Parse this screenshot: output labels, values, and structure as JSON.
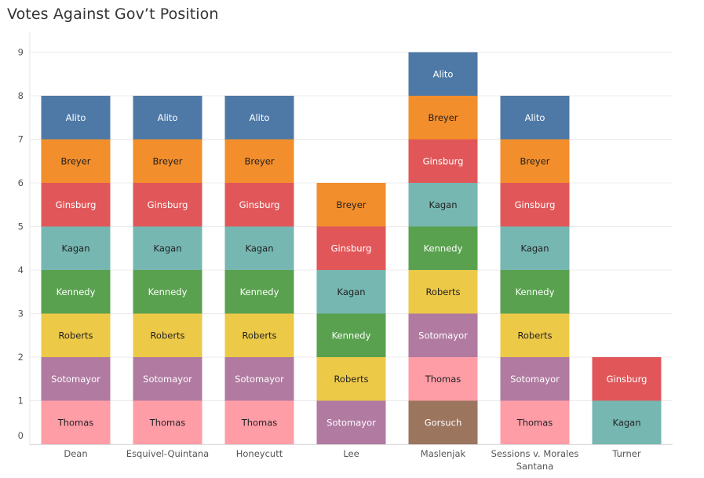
{
  "chart_data": {
    "type": "bar",
    "stacked": true,
    "title": "Votes Against Gov’t Position",
    "xlabel": "",
    "ylabel": "",
    "ylim": [
      0,
      9
    ],
    "yticks": [
      0,
      1,
      2,
      3,
      4,
      5,
      6,
      7,
      8,
      9
    ],
    "categories": [
      {
        "name": "Dean",
        "lines": [
          "Dean"
        ]
      },
      {
        "name": "Esquivel-Quintana",
        "lines": [
          "Esquivel-Quintana"
        ]
      },
      {
        "name": "Honeycutt",
        "lines": [
          "Honeycutt"
        ]
      },
      {
        "name": "Lee",
        "lines": [
          "Lee"
        ]
      },
      {
        "name": "Maslenjak",
        "lines": [
          "Maslenjak"
        ]
      },
      {
        "name": "Sessions v. Morales Santana",
        "lines": [
          "Sessions v. Morales",
          "Santana"
        ]
      },
      {
        "name": "Turner",
        "lines": [
          "Turner"
        ]
      }
    ],
    "justices": {
      "Alito": {
        "color": "#4e79a7",
        "text": "#ffffff"
      },
      "Breyer": {
        "color": "#f28e2b",
        "text": "#222222"
      },
      "Ginsburg": {
        "color": "#e15759",
        "text": "#ffffff"
      },
      "Kagan": {
        "color": "#76b7b2",
        "text": "#222222"
      },
      "Kennedy": {
        "color": "#59a14f",
        "text": "#ffffff"
      },
      "Roberts": {
        "color": "#edc948",
        "text": "#222222"
      },
      "Sotomayor": {
        "color": "#b07aa1",
        "text": "#ffffff"
      },
      "Thomas": {
        "color": "#ff9da7",
        "text": "#222222"
      },
      "Gorsuch": {
        "color": "#9c755f",
        "text": "#ffffff"
      }
    },
    "stacks": [
      [
        "Thomas",
        "Sotomayor",
        "Roberts",
        "Kennedy",
        "Kagan",
        "Ginsburg",
        "Breyer",
        "Alito"
      ],
      [
        "Thomas",
        "Sotomayor",
        "Roberts",
        "Kennedy",
        "Kagan",
        "Ginsburg",
        "Breyer",
        "Alito"
      ],
      [
        "Thomas",
        "Sotomayor",
        "Roberts",
        "Kennedy",
        "Kagan",
        "Ginsburg",
        "Breyer",
        "Alito"
      ],
      [
        "Sotomayor",
        "Roberts",
        "Kennedy",
        "Kagan",
        "Ginsburg",
        "Breyer"
      ],
      [
        "Gorsuch",
        "Thomas",
        "Sotomayor",
        "Roberts",
        "Kennedy",
        "Kagan",
        "Ginsburg",
        "Breyer",
        "Alito"
      ],
      [
        "Thomas",
        "Sotomayor",
        "Roberts",
        "Kennedy",
        "Kagan",
        "Ginsburg",
        "Breyer",
        "Alito"
      ],
      [
        "Kagan",
        "Ginsburg"
      ]
    ],
    "totals": [
      8,
      8,
      8,
      6,
      9,
      8,
      2
    ]
  }
}
